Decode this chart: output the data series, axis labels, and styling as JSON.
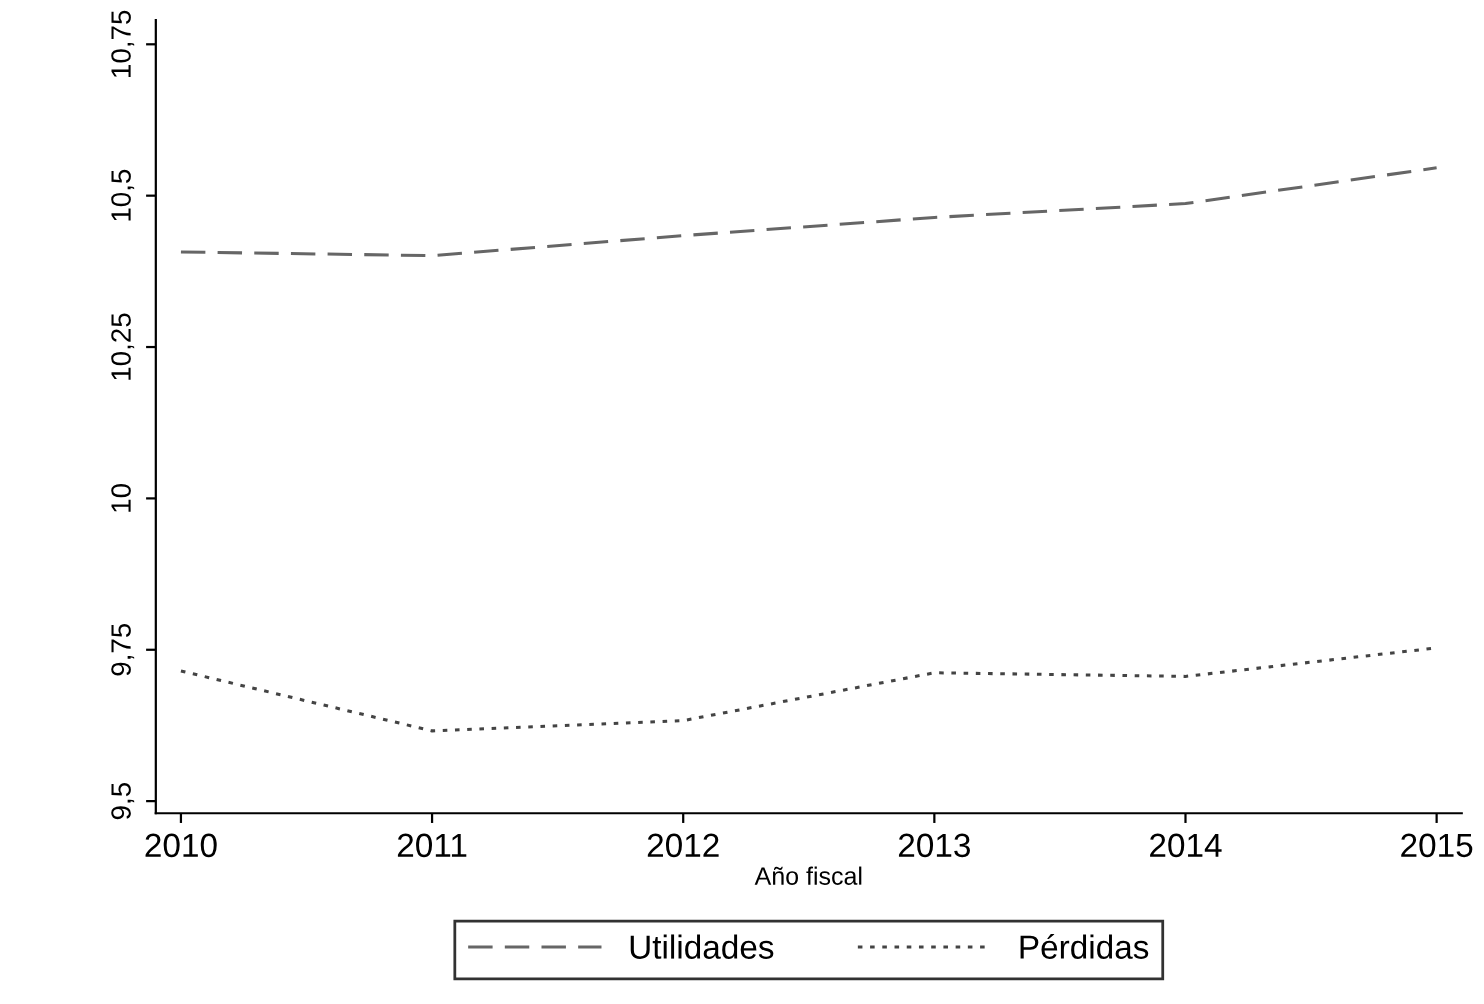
{
  "chart_data": {
    "type": "line",
    "xlabel": "Año fiscal",
    "x": [
      2010,
      2011,
      2012,
      2013,
      2014,
      2015
    ],
    "series": [
      {
        "name": "Utilidades",
        "color": "#666666",
        "line_style": "dashed",
        "values": [
          10.407,
          10.401,
          10.434,
          10.464,
          10.487,
          10.546
        ]
      },
      {
        "name": "Pérdidas",
        "color": "#444444",
        "line_style": "dotted",
        "values": [
          9.715,
          9.616,
          9.633,
          9.712,
          9.706,
          9.753
        ]
      }
    ],
    "xlim": [
      2009.9,
      2015.1
    ],
    "ylim": [
      9.48,
      10.79
    ],
    "xticks": [
      2010,
      2011,
      2012,
      2013,
      2014,
      2015
    ],
    "yticks": [
      {
        "value": 9.5,
        "label": "9,5"
      },
      {
        "value": 9.75,
        "label": "9,75"
      },
      {
        "value": 10,
        "label": "10"
      },
      {
        "value": 10.25,
        "label": "10,25"
      },
      {
        "value": 10.5,
        "label": "10,5"
      },
      {
        "value": 10.75,
        "label": "10,75"
      }
    ],
    "grid": false,
    "legend": "bottom",
    "marker": "none"
  }
}
